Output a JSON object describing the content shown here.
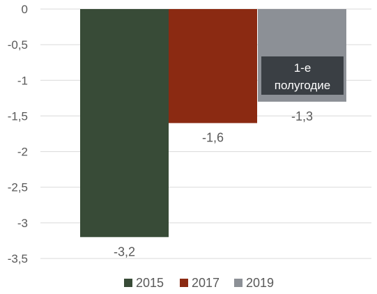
{
  "chart_data": {
    "type": "bar",
    "series": [
      {
        "name": "2015",
        "value": -3.2,
        "label": "-3,2",
        "color": "#384b37"
      },
      {
        "name": "2017",
        "value": -1.6,
        "label": "-1,6",
        "color": "#8b2a12"
      },
      {
        "name": "2019",
        "value": -1.3,
        "label": "-1,3",
        "color": "#8c9096"
      }
    ],
    "ylim": [
      -3.5,
      0
    ],
    "yticks": [
      {
        "value": 0,
        "label": "0"
      },
      {
        "value": -0.5,
        "label": "-0,5"
      },
      {
        "value": -1,
        "label": "-1"
      },
      {
        "value": -1.5,
        "label": "-1,5"
      },
      {
        "value": -2,
        "label": "-2"
      },
      {
        "value": -2.5,
        "label": "-2,5"
      },
      {
        "value": -3,
        "label": "-3"
      },
      {
        "value": -3.5,
        "label": "-3,5"
      }
    ],
    "grid": true,
    "legend_position": "bottom",
    "annotation": {
      "series": "2019",
      "lines": [
        "1-е",
        "полугодие"
      ],
      "background": "#3a3f44",
      "text_color": "#ffffff"
    }
  }
}
